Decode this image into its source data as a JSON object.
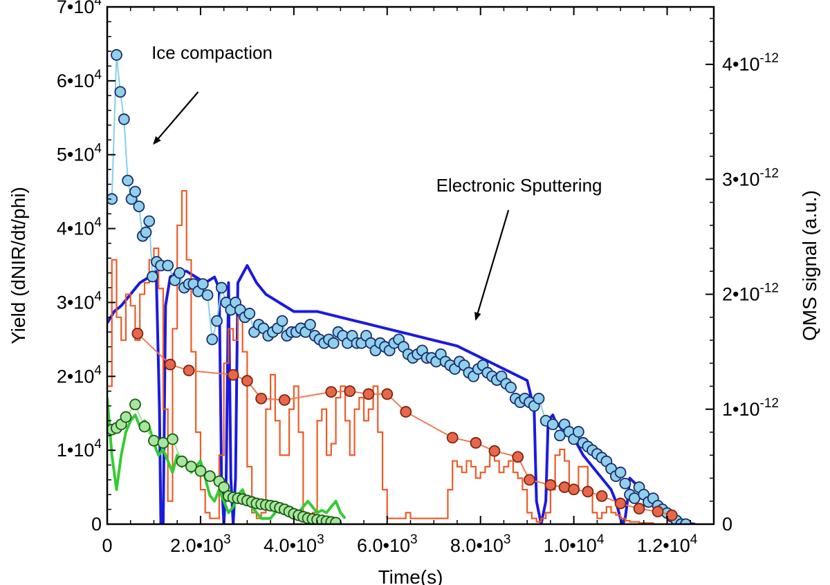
{
  "chart_data": {
    "type": "line",
    "xlabel": "Time(s)",
    "ylabel_left": "Yield (dNIR/dt/phi)",
    "ylabel_right": "QMS signal (a.u.)",
    "xlim": [
      0,
      13000
    ],
    "ylim_left": [
      0,
      70000
    ],
    "ylim_right": [
      0,
      4.5e-12
    ],
    "grid": false,
    "legend": "none",
    "x_ticks": [
      {
        "value": 0,
        "label": "0"
      },
      {
        "value": 2000,
        "label": "2.0•10",
        "exp": "3"
      },
      {
        "value": 4000,
        "label": "4.0•10",
        "exp": "3"
      },
      {
        "value": 6000,
        "label": "6.0•10",
        "exp": "3"
      },
      {
        "value": 8000,
        "label": "8.0•10",
        "exp": "3"
      },
      {
        "value": 10000,
        "label": "1.0•10",
        "exp": "4"
      },
      {
        "value": 12000,
        "label": "1.2•10",
        "exp": "4"
      }
    ],
    "y_ticks_left": [
      {
        "value": 0,
        "label": "0"
      },
      {
        "value": 10000,
        "label": "1•10",
        "exp": "4"
      },
      {
        "value": 20000,
        "label": "2•10",
        "exp": "4"
      },
      {
        "value": 30000,
        "label": "3•10",
        "exp": "4"
      },
      {
        "value": 40000,
        "label": "4•10",
        "exp": "4"
      },
      {
        "value": 50000,
        "label": "5•10",
        "exp": "4"
      },
      {
        "value": 60000,
        "label": "6•10",
        "exp": "4"
      },
      {
        "value": 70000,
        "label": "7•10",
        "exp": "4"
      }
    ],
    "y_ticks_right": [
      {
        "value": 0,
        "label": "0"
      },
      {
        "value": 1e-12,
        "label": "1•10",
        "exp": "-12"
      },
      {
        "value": 2e-12,
        "label": "2•10",
        "exp": "-12"
      },
      {
        "value": 3e-12,
        "label": "3•10",
        "exp": "-12"
      },
      {
        "value": 4e-12,
        "label": "4•10",
        "exp": "-12"
      }
    ],
    "annotations": [
      {
        "text": "Ice compaction",
        "x": 950,
        "y": 63000,
        "arrow_from": [
          1950,
          58500
        ],
        "arrow_to": [
          1000,
          51500
        ]
      },
      {
        "text": "Electronic Sputtering",
        "x": 7050,
        "y": 45000,
        "arrow_from": [
          8600,
          42500
        ],
        "arrow_to": [
          7900,
          27700
        ]
      }
    ],
    "series": [
      {
        "axis": "right",
        "style": "dense-line",
        "color": "#1a1ae0",
        "x": [
          0,
          150,
          300,
          500,
          700,
          900,
          1050,
          1120,
          1150,
          1200,
          1250,
          1350,
          1500,
          1700,
          1900,
          2100,
          2300,
          2400,
          2450,
          2500,
          2550,
          2600,
          2650,
          2700,
          2750,
          2800,
          3000,
          3200,
          3400,
          3600,
          4000,
          4500,
          5000,
          5500,
          6000,
          6500,
          7000,
          7500,
          8000,
          8500,
          9000,
          9150,
          9200,
          9300,
          9400,
          9450,
          9550,
          9600,
          9700,
          9800,
          10000,
          10200,
          10400,
          10600,
          10800,
          10900,
          11000,
          11050,
          11100,
          11150,
          11200,
          11400,
          11600,
          11800,
          12000,
          12200,
          12400,
          12600
        ],
        "y": [
          1.75e-12,
          1.85e-12,
          1.9e-12,
          2e-12,
          2.1e-12,
          2.15e-12,
          2.2e-12,
          1e-12,
          0,
          0,
          1.9e-12,
          2.15e-12,
          2.2e-12,
          2.2e-12,
          2.15e-12,
          2.1e-12,
          2.15e-12,
          2.05e-12,
          4e-13,
          0,
          4e-13,
          2.1e-12,
          4e-13,
          0,
          4e-13,
          2.1e-12,
          2.25e-12,
          2.1e-12,
          2e-12,
          1.95e-12,
          1.85e-12,
          1.85e-12,
          1.8e-12,
          1.75e-12,
          1.7e-12,
          1.65e-12,
          1.6e-12,
          1.55e-12,
          1.45e-12,
          1.35e-12,
          1.25e-12,
          1e-12,
          2e-13,
          0,
          2e-13,
          9e-13,
          9.5e-13,
          9e-13,
          8.5e-13,
          8e-13,
          7.5e-13,
          6e-13,
          5e-13,
          4e-13,
          3e-13,
          2e-13,
          5e-14,
          0,
          5e-14,
          2e-13,
          4e-13,
          3.2e-13,
          2.5e-13,
          1.8e-13,
          1e-13,
          5e-14,
          1e-14,
          0
        ]
      },
      {
        "axis": "right",
        "style": "step",
        "color": "#ee5a24",
        "x": [
          0,
          100,
          200,
          300,
          400,
          500,
          600,
          700,
          800,
          900,
          1000,
          1100,
          1200,
          1300,
          1400,
          1500,
          1600,
          1700,
          1800,
          1900,
          2000,
          2100,
          2200,
          2300,
          2400,
          2500,
          2600,
          2700,
          2800,
          2900,
          3000,
          3100,
          3200,
          3300,
          3400,
          3500,
          3600,
          3700,
          3800,
          3900,
          4000,
          4100,
          4200,
          4300,
          4400,
          4500,
          4600,
          4700,
          4800,
          4900,
          5000,
          5100,
          5200,
          5300,
          5400,
          5500,
          5600,
          5700,
          5800,
          5900,
          6000,
          6100,
          6200,
          6300,
          6400,
          6500,
          6600,
          6700,
          6800,
          6900,
          7000,
          7100,
          7200,
          7300,
          7400,
          7500,
          7600,
          7700,
          7800,
          7900,
          8000,
          8100,
          8200,
          8300,
          8400,
          8500,
          8600,
          8700,
          8800,
          8900,
          9000,
          9100,
          9200,
          9300,
          9400,
          9500,
          9600,
          9700,
          9800,
          9900,
          10000,
          10100,
          10200,
          10300,
          10400,
          10500,
          10600,
          10700,
          10800,
          10900,
          11000,
          11100,
          11200,
          11300,
          11400,
          11500,
          11600,
          11700,
          11800,
          11900,
          12000,
          12100,
          12200,
          12300,
          12400,
          12500
        ],
        "y": [
          1.2e-12,
          2.3e-12,
          1.8e-12,
          1.6e-12,
          2e-12,
          1.9e-12,
          1.6e-12,
          2e-12,
          2.1e-12,
          2.3e-12,
          2.4e-12,
          2.05e-12,
          1e-12,
          2e-13,
          1.7e-12,
          2.6e-12,
          2.9e-12,
          2.3e-12,
          1.5e-12,
          8e-13,
          3e-13,
          1e-13,
          5e-14,
          5e-14,
          6e-13,
          1.4e-12,
          1.7e-12,
          1.6e-12,
          1.8e-12,
          1.5e-12,
          5e-13,
          1e-13,
          5e-14,
          1e-13,
          1e-12,
          1.3e-12,
          9e-13,
          6e-13,
          6e-13,
          1e-12,
          1.2e-12,
          8e-13,
          1e-13,
          5e-14,
          1e-13,
          9e-13,
          1e-12,
          6e-13,
          7e-13,
          1.1e-12,
          1.2e-12,
          9e-13,
          6e-13,
          1e-12,
          1.1e-12,
          9e-13,
          1e-12,
          1.2e-12,
          8e-13,
          3e-13,
          5e-14,
          5e-14,
          5e-14,
          5e-14,
          1e-13,
          5e-14,
          5e-14,
          5e-14,
          5e-14,
          5e-14,
          5e-14,
          5e-14,
          5e-14,
          3e-13,
          5.5e-13,
          5e-13,
          4.5e-13,
          5.5e-13,
          5e-13,
          4e-13,
          4.5e-13,
          5e-13,
          6e-13,
          5.5e-13,
          4.5e-13,
          5e-13,
          5.5e-13,
          4.5e-13,
          4e-13,
          3e-13,
          1e-13,
          5e-14,
          2e-14,
          5e-14,
          1e-13,
          3e-13,
          6e-13,
          6.5e-13,
          5.5e-13,
          3e-13,
          3e-13,
          5e-13,
          5e-13,
          3e-13,
          1e-13,
          5e-14,
          1e-13,
          1.5e-13,
          1e-13,
          8e-14,
          5e-14,
          3e-14,
          2e-14,
          2e-14,
          1e-14,
          1e-14,
          1e-14,
          0,
          0,
          0,
          0,
          0,
          0,
          0,
          0,
          0
        ]
      },
      {
        "axis": "right",
        "style": "dense-line",
        "color": "#33cc33",
        "x": [
          0,
          100,
          200,
          300,
          400,
          500,
          600,
          700,
          800,
          900,
          1000,
          1100,
          1200,
          1300,
          1400,
          1500,
          1600,
          1700,
          1800,
          1900,
          2000,
          2100,
          2200,
          2300,
          2400,
          2500,
          2600,
          2700,
          2800,
          2900,
          3000,
          3100,
          3200,
          3300,
          3400,
          3500,
          3600,
          3700,
          3800,
          3900,
          4000,
          4100,
          4200,
          4300,
          4400,
          4500,
          4600,
          4700,
          4800,
          4900,
          5000,
          5100
        ],
        "y": [
          1.1e-12,
          6e-13,
          3e-13,
          6e-13,
          8e-13,
          9e-13,
          9.5e-13,
          8.5e-13,
          9e-13,
          8.5e-13,
          7e-13,
          6e-13,
          6.5e-13,
          5.5e-13,
          4.5e-13,
          6e-13,
          5e-13,
          5.5e-13,
          4.5e-13,
          5e-13,
          5.5e-13,
          4e-13,
          2.5e-13,
          2e-13,
          3e-13,
          2e-13,
          1e-13,
          1.5e-13,
          2.5e-13,
          3e-13,
          2e-13,
          1.5e-13,
          1e-13,
          5e-14,
          5e-14,
          5e-14,
          1e-13,
          1.5e-13,
          1.5e-13,
          1.5e-13,
          1.2e-13,
          1e-13,
          1.5e-13,
          2e-13,
          1.5e-13,
          1e-13,
          1.2e-13,
          1e-13,
          1.5e-13,
          2e-13,
          1e-13,
          5e-14
        ]
      },
      {
        "axis": "left",
        "style": "markers-line",
        "color": "#8fd1ea",
        "line_color": "#87ceeb",
        "marker_edge": "#1a2a6c",
        "x": [
          100,
          200,
          280,
          360,
          440,
          520,
          600,
          680,
          760,
          830,
          900,
          970,
          1060,
          1150,
          1300,
          1450,
          1550,
          1650,
          1750,
          1850,
          1950,
          2050,
          2150,
          2250,
          2350,
          2450,
          2550,
          2650,
          2750,
          2850,
          2950,
          3050,
          3150,
          3250,
          3350,
          3450,
          3550,
          3650,
          3750,
          3850,
          3950,
          4050,
          4150,
          4250,
          4350,
          4450,
          4550,
          4650,
          4750,
          4850,
          4950,
          5050,
          5150,
          5250,
          5350,
          5450,
          5550,
          5650,
          5750,
          5850,
          5950,
          6050,
          6150,
          6250,
          6350,
          6450,
          6550,
          6650,
          6750,
          6850,
          6950,
          7050,
          7150,
          7250,
          7350,
          7450,
          7550,
          7650,
          7750,
          7850,
          7950,
          8050,
          8150,
          8250,
          8350,
          8450,
          8550,
          8650,
          8750,
          8850,
          8950,
          9050,
          9150,
          9250,
          9400,
          9550,
          9700,
          9800,
          9900,
          10000,
          10100,
          10200,
          10300,
          10400,
          10500,
          10600,
          10700,
          10800,
          10900,
          11000,
          11100,
          11200,
          11300,
          11400,
          11500,
          11600,
          11700,
          11800,
          11900,
          12000,
          12100,
          12200,
          12300,
          12400
        ],
        "y": [
          44000,
          63500,
          58500,
          54800,
          46500,
          44000,
          45000,
          43000,
          39000,
          39500,
          41000,
          33500,
          35500,
          35000,
          35000,
          33000,
          34000,
          32000,
          32500,
          32500,
          31500,
          32500,
          31000,
          25000,
          27500,
          32000,
          30000,
          29000,
          30000,
          29000,
          28000,
          28500,
          26000,
          27000,
          26500,
          25500,
          26000,
          26500,
          27500,
          25500,
          26000,
          26000,
          26500,
          26000,
          27000,
          25500,
          25000,
          24500,
          25000,
          24500,
          26000,
          25500,
          24500,
          25500,
          24500,
          24500,
          25500,
          24500,
          23500,
          24500,
          24000,
          23500,
          24500,
          25000,
          24000,
          23000,
          22500,
          23000,
          23500,
          22500,
          22500,
          22000,
          23000,
          22000,
          21500,
          21000,
          22000,
          21500,
          20500,
          20000,
          21000,
          21500,
          20500,
          20000,
          19500,
          20000,
          19000,
          18500,
          17000,
          16500,
          17000,
          16500,
          16000,
          17000,
          14000,
          13500,
          12000,
          13500,
          12500,
          11500,
          12500,
          11000,
          10500,
          10000,
          9500,
          9000,
          8500,
          7500,
          6500,
          7000,
          5500,
          4000,
          3500,
          5000,
          4000,
          3000,
          3500,
          2500,
          2000,
          1500,
          1000,
          500,
          0,
          0
        ]
      },
      {
        "axis": "left",
        "style": "markers-line",
        "color": "#e8674a",
        "line_color": "#ee7a50",
        "marker_edge": "#7a2410",
        "x": [
          650,
          1350,
          1750,
          2700,
          3000,
          3300,
          3800,
          4800,
          5200,
          5600,
          6000,
          6400,
          7400,
          7900,
          8300,
          8800,
          9050,
          9500,
          9800,
          10000,
          10300,
          10600,
          11000,
          11400,
          11800,
          12100
        ],
        "y": [
          25800,
          21600,
          20800,
          20200,
          19400,
          17000,
          16800,
          17900,
          18000,
          17600,
          17600,
          15200,
          11700,
          11000,
          9900,
          9100,
          6000,
          5300,
          5000,
          4700,
          4400,
          3800,
          2800,
          2100,
          1700,
          1200
        ]
      },
      {
        "axis": "left",
        "style": "markers-line",
        "color": "#a8e6a0",
        "line_color": "#a8e6a0",
        "marker_edge": "#1a5a10",
        "x": [
          100,
          200,
          300,
          400,
          600,
          800,
          1000,
          1200,
          1400,
          1600,
          1800,
          2000,
          2200,
          2400,
          2500,
          2600,
          2700,
          2800,
          2900,
          3000,
          3100,
          3200,
          3300,
          3400,
          3500,
          3600,
          3700,
          3800,
          3900,
          4000,
          4100,
          4200,
          4300,
          4400,
          4500,
          4600,
          4700,
          4800,
          4900
        ],
        "y": [
          12800,
          13000,
          13500,
          14500,
          16200,
          13200,
          11300,
          11000,
          11500,
          8500,
          7800,
          7200,
          6500,
          5800,
          5000,
          3800,
          3600,
          3500,
          3400,
          3200,
          3000,
          2800,
          2700,
          2600,
          2500,
          2400,
          2200,
          2000,
          1700,
          1400,
          1200,
          1000,
          800,
          700,
          600,
          500,
          400,
          300,
          200
        ]
      }
    ]
  }
}
